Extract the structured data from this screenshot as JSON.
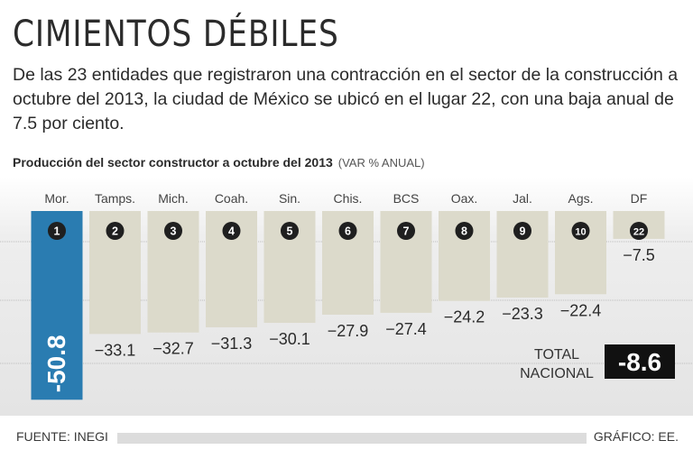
{
  "header": {
    "title": "CIMIENTOS DÉBILES",
    "subtitle": "De las 23 entidades que registraron una contracción en el sector de la construcción a octubre del 2013, la ciudad de México se ubicó en el lugar 22, con una baja anual de 7.5 por ciento."
  },
  "chart_heading": {
    "label": "Producción del sector constructor a octubre del 2013",
    "unit": "(VAR % ANUAL)"
  },
  "chart_data": {
    "type": "bar",
    "title": "Producción del sector constructor a octubre del 2013",
    "ylabel": "VAR % ANUAL",
    "categories": [
      "Mor.",
      "Tamps.",
      "Mich.",
      "Coah.",
      "Sin.",
      "Chis.",
      "BCS",
      "Oax.",
      "Jal.",
      "Ags.",
      "DF"
    ],
    "ranks": [
      "1",
      "2",
      "3",
      "4",
      "5",
      "6",
      "7",
      "8",
      "9",
      "10",
      "22"
    ],
    "values": [
      -50.8,
      -33.1,
      -32.7,
      -31.3,
      -30.1,
      -27.9,
      -27.4,
      -24.2,
      -23.3,
      -22.4,
      -7.5
    ],
    "value_labels": [
      "-50.8",
      "−33.1",
      "−32.7",
      "−31.3",
      "−30.1",
      "−27.9",
      "−27.4",
      "−24.2",
      "−23.3",
      "−22.4",
      "−7.5"
    ],
    "ylim": [
      -55,
      0
    ],
    "highlight_color": "#2a7cb1",
    "bar_color": "#dcdacb",
    "total": {
      "label_line1": "TOTAL",
      "label_line2": "NACIONAL",
      "value": "-8.6"
    }
  },
  "footer": {
    "source": "FUENTE: INEGI",
    "credit": "GRÁFICO: EE."
  }
}
